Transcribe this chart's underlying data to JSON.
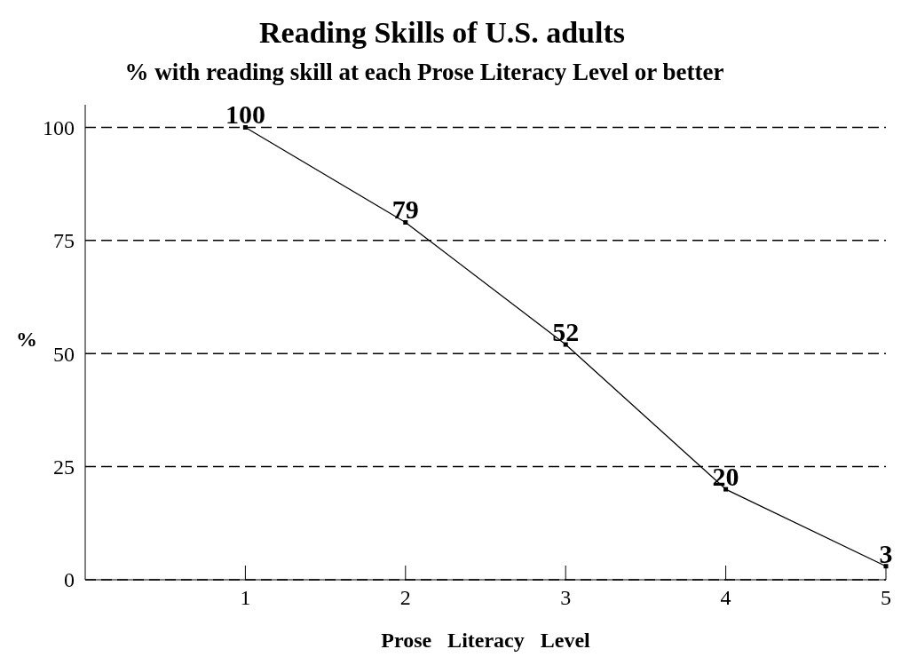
{
  "chart_data": {
    "type": "line",
    "title": "Reading Skills of U.S. adults",
    "subtitle": "% with reading skill at each Prose Literacy Level or better",
    "xlabel": "Prose   Literacy   Level",
    "ylabel": "%",
    "x": [
      1,
      2,
      3,
      4,
      5
    ],
    "series": [
      {
        "color": "#000000",
        "values": [
          100,
          79,
          52,
          20,
          3
        ]
      }
    ],
    "xlim": [
      0,
      5
    ],
    "xticks": [
      1,
      2,
      3,
      4,
      5
    ],
    "ylim": [
      0,
      105
    ],
    "yticks": [
      0,
      25,
      50,
      75,
      100
    ],
    "grid": "y",
    "line_style": "solid",
    "marker": "square",
    "data_labels": true
  }
}
